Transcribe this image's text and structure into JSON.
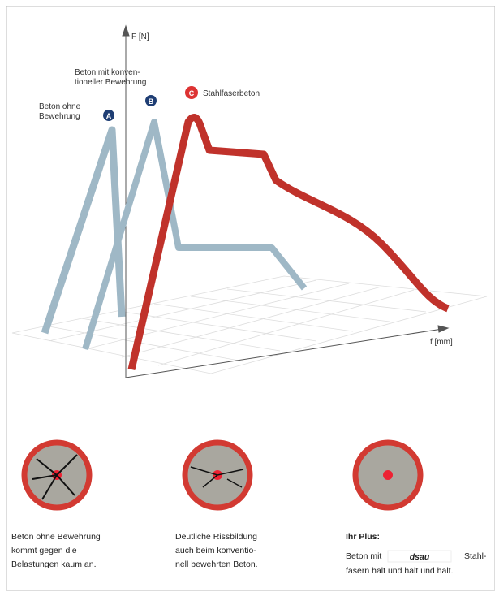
{
  "diagram": {
    "y_axis_label": "F [N]",
    "x_axis_label": "f [mm]",
    "curves": [
      {
        "badge": "A",
        "label_lines": [
          "Beton ohne",
          "Bewehrung"
        ]
      },
      {
        "badge": "B",
        "label_lines": [
          "Beton mit konven-",
          "tioneller Bewehrung"
        ]
      },
      {
        "badge": "C",
        "label_lines": [
          "Stahlfaserbeton"
        ]
      }
    ]
  },
  "captions": [
    {
      "lines": [
        "Beton ohne Bewehrung",
        "kommt gegen die",
        "Belastungen kaum an."
      ]
    },
    {
      "lines": [
        "Deutliche Rissbildung",
        "auch beim konventio-",
        "nell bewehrten Beton."
      ]
    },
    {
      "title": "Ihr Plus:",
      "lines": [
        "Beton mit",
        "dsau",
        "Stahl-",
        "fasern hält und hält und hält."
      ]
    }
  ]
}
